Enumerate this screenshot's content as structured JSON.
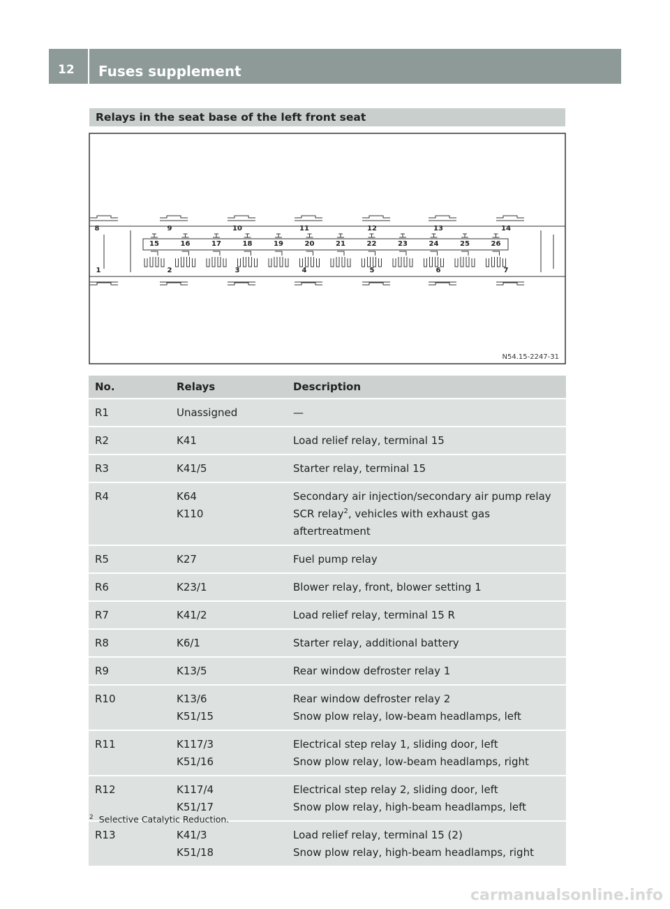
{
  "header": {
    "page": "12",
    "title": "Fuses supplement"
  },
  "section": {
    "title": "Relays in the seat base of the left front seat"
  },
  "diagram": {
    "labels": [
      "1",
      "2",
      "3",
      "4",
      "5",
      "6",
      "7",
      "8",
      "9",
      "10",
      "11",
      "12",
      "13",
      "14",
      "15",
      "16",
      "17",
      "18",
      "19",
      "20",
      "21",
      "22",
      "23",
      "24",
      "25",
      "26"
    ],
    "code": "N54.15-2247-31"
  },
  "table": {
    "columns": [
      "No.",
      "Relays",
      "Description"
    ],
    "rows": [
      {
        "no": "R1",
        "relays": [
          "Unassigned"
        ],
        "descriptions": [
          "—"
        ]
      },
      {
        "no": "R2",
        "relays": [
          "K41"
        ],
        "descriptions": [
          "Load relief relay, terminal 15"
        ]
      },
      {
        "no": "R3",
        "relays": [
          "K41/5"
        ],
        "descriptions": [
          "Starter relay, terminal 15"
        ]
      },
      {
        "no": "R4",
        "relays": [
          "K64",
          "K110"
        ],
        "descriptions": [
          "Secondary air injection/secondary air pump relay",
          {
            "text": "SCR relay",
            "sup": "2",
            "rest": ", vehicles with exhaust gas aftertreatment"
          }
        ]
      },
      {
        "no": "R5",
        "relays": [
          "K27"
        ],
        "descriptions": [
          "Fuel pump relay"
        ]
      },
      {
        "no": "R6",
        "relays": [
          "K23/1"
        ],
        "descriptions": [
          "Blower relay, front, blower setting 1"
        ]
      },
      {
        "no": "R7",
        "relays": [
          "K41/2"
        ],
        "descriptions": [
          "Load relief relay, terminal 15 R"
        ]
      },
      {
        "no": "R8",
        "relays": [
          "K6/1"
        ],
        "descriptions": [
          "Starter relay, additional battery"
        ]
      },
      {
        "no": "R9",
        "relays": [
          "K13/5"
        ],
        "descriptions": [
          "Rear window defroster relay 1"
        ]
      },
      {
        "no": "R10",
        "relays": [
          "K13/6",
          "K51/15"
        ],
        "descriptions": [
          "Rear window defroster relay 2",
          "Snow plow relay, low-beam headlamps, left"
        ]
      },
      {
        "no": "R11",
        "relays": [
          "K117/3",
          "K51/16"
        ],
        "descriptions": [
          "Electrical step relay 1, sliding door, left",
          "Snow plow relay, low-beam headlamps, right"
        ]
      },
      {
        "no": "R12",
        "relays": [
          "K117/4",
          "K51/17"
        ],
        "descriptions": [
          "Electrical step relay 2, sliding door, left",
          "Snow plow relay, high-beam headlamps, left"
        ]
      },
      {
        "no": "R13",
        "relays": [
          "K41/3",
          "K51/18"
        ],
        "descriptions": [
          "Load relief relay, terminal 15 (2)",
          "Snow plow relay, high-beam headlamps, right"
        ]
      }
    ]
  },
  "footnote": {
    "mark": "2",
    "text": "Selective Catalytic Reduction."
  },
  "watermark": "carmanualsonline.info"
}
